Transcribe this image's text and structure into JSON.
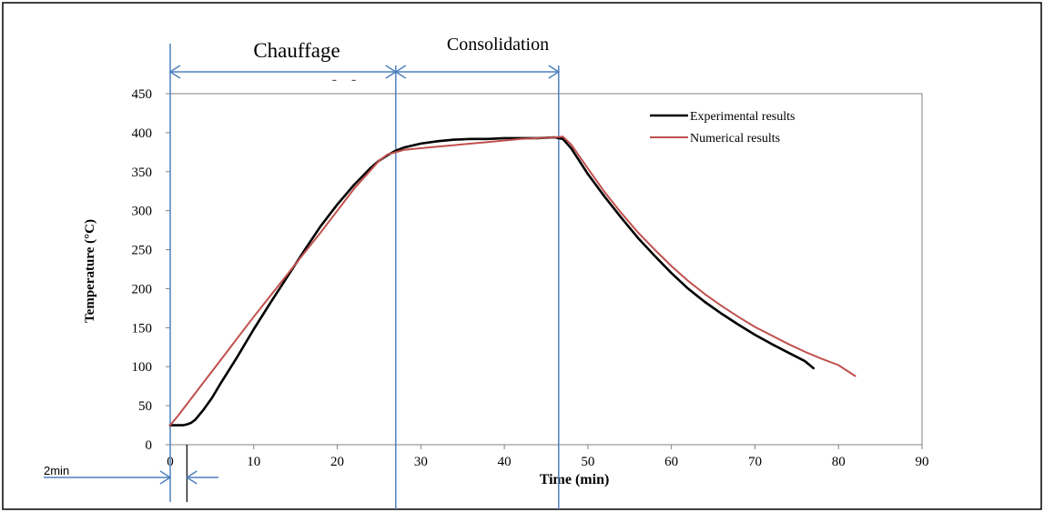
{
  "chart_data": {
    "type": "line",
    "title": "",
    "xlabel": "Time (min)",
    "ylabel": "Temperature (°C)",
    "xlim": [
      0,
      90
    ],
    "ylim": [
      0,
      450
    ],
    "x_ticks": [
      0,
      10,
      20,
      30,
      40,
      50,
      60,
      70,
      80,
      90
    ],
    "y_ticks": [
      0,
      50,
      100,
      150,
      200,
      250,
      300,
      350,
      400,
      450
    ],
    "grid": false,
    "legend_position": "top-right",
    "series": [
      {
        "name": "Experimental results",
        "color": "#000000",
        "x": [
          0,
          0.5,
          1,
          1.5,
          2,
          2.5,
          3,
          4,
          5,
          6,
          8,
          10,
          12,
          14,
          16,
          18,
          20,
          22,
          24,
          25,
          26,
          27,
          28,
          30,
          32,
          34,
          36,
          38,
          40,
          42,
          44,
          46,
          47,
          48,
          50,
          52,
          54,
          56,
          58,
          60,
          62,
          64,
          66,
          68,
          70,
          72,
          74,
          76,
          77
        ],
        "y": [
          25,
          25,
          25,
          25,
          26,
          28,
          32,
          45,
          60,
          78,
          112,
          148,
          182,
          215,
          248,
          280,
          308,
          333,
          355,
          364,
          371,
          377,
          381,
          386,
          389,
          391,
          392,
          392,
          393,
          393,
          393,
          394,
          392,
          380,
          347,
          318,
          291,
          265,
          242,
          220,
          200,
          183,
          168,
          154,
          141,
          129,
          118,
          107,
          98
        ]
      },
      {
        "name": "Numerical results",
        "color": "#c0504d",
        "x": [
          0,
          1,
          2,
          4,
          6,
          8,
          10,
          12,
          14,
          16,
          18,
          20,
          22,
          24,
          25,
          26,
          28,
          30,
          32,
          34,
          36,
          38,
          40,
          42,
          44,
          46,
          47,
          48,
          50,
          52,
          54,
          56,
          58,
          60,
          62,
          64,
          66,
          68,
          70,
          72,
          74,
          76,
          78,
          80,
          82
        ],
        "y": [
          25,
          38,
          52,
          80,
          108,
          136,
          164,
          191,
          218,
          245,
          272,
          300,
          328,
          352,
          364,
          372,
          378,
          380,
          382,
          384,
          386,
          388,
          390,
          392,
          393,
          394,
          395,
          385,
          354,
          324,
          297,
          272,
          250,
          229,
          210,
          193,
          178,
          164,
          151,
          140,
          129,
          119,
          110,
          102,
          88
        ]
      }
    ],
    "annotations": {
      "heating_label": "Chauffage",
      "consolidation_label": "Consolidation",
      "delay_label": "2min",
      "dash_mark": "-    -",
      "guide_lines_x": [
        0,
        2,
        27,
        46.5
      ]
    }
  },
  "style": {
    "guide_color": "#4f81bd",
    "axis_color": "#808080",
    "frame_color": "#000000"
  }
}
